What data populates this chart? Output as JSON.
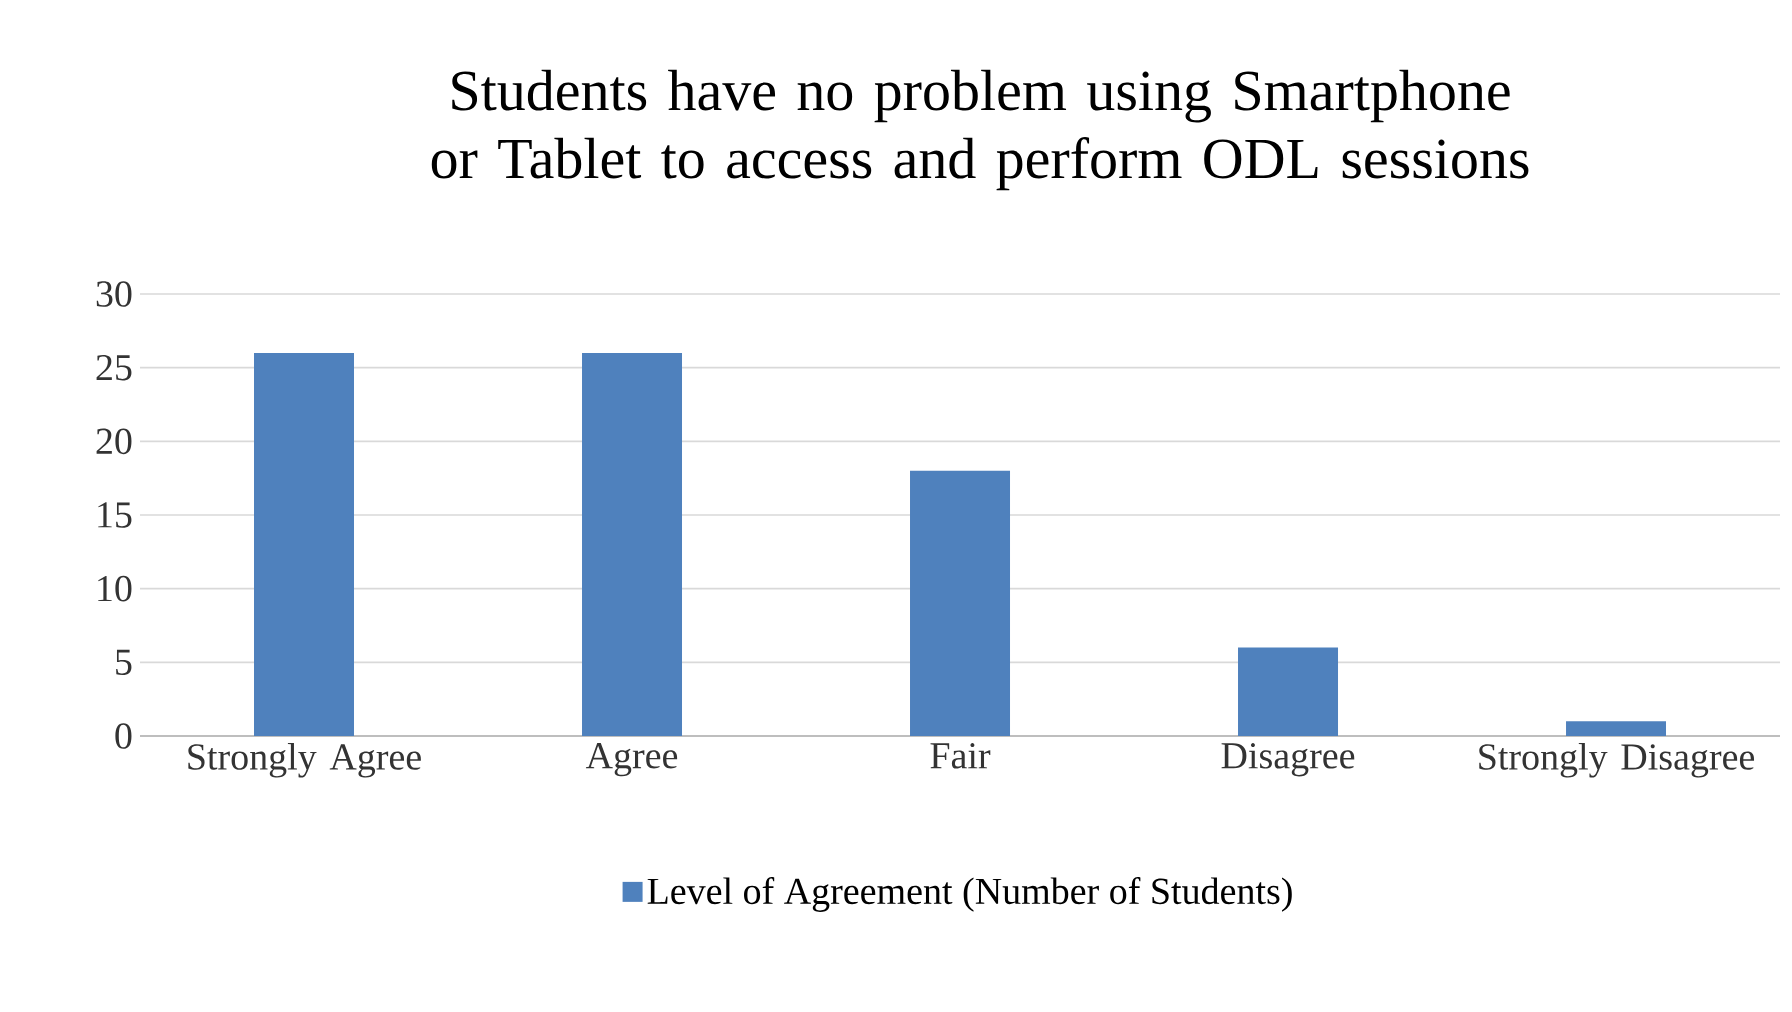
{
  "chart_data": {
    "type": "bar",
    "title": "Students have no problem using Smartphone or Tablet to access and perform ODL sessions",
    "categories": [
      "Strongly Agree",
      "Agree",
      "Fair",
      "Disagree",
      "Strongly Disagree"
    ],
    "series": [
      {
        "name": "Level of Agreement (Number of Students)",
        "color": "#4f81bd",
        "values": [
          26,
          26,
          18,
          6,
          1
        ]
      }
    ],
    "ylim": [
      0,
      30
    ],
    "yticks": [
      0,
      5,
      10,
      15,
      20,
      25,
      30
    ],
    "grid": "y",
    "legend": "bottom"
  }
}
